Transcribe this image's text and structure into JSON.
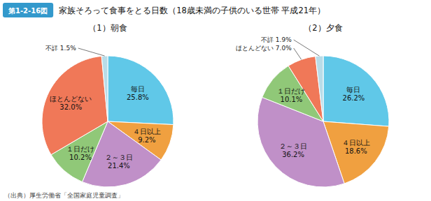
{
  "title": "家族そろって食事をとる日数（18歳未満の子供のいる世帯 平成21年）",
  "annotations": [
    "第1-2-16図",
    "（出典）厚生労働省「全国家庭児童調査」"
  ],
  "chart_data": [
    {
      "type": "pie",
      "title": "（1）朝食",
      "categories": [
        "毎日",
        "４日以上",
        "２～３日",
        "１日だけ",
        "ほとんどない",
        "不詳"
      ],
      "values": [
        25.8,
        9.2,
        21.4,
        10.2,
        32.0,
        1.5
      ],
      "value_labels": [
        "25.8%",
        "9.2%",
        "21.4%",
        "10.2%",
        "32.0%",
        "1.5%"
      ],
      "colors": [
        "#60c8e8",
        "#f0a040",
        "#c090c8",
        "#90c878",
        "#f07858",
        "#b8dce8"
      ],
      "data_labels": true
    },
    {
      "type": "pie",
      "title": "（2）夕食",
      "categories": [
        "毎日",
        "４日以上",
        "２～３日",
        "１日だけ",
        "ほとんどない",
        "不詳"
      ],
      "values": [
        26.2,
        18.6,
        36.2,
        10.1,
        7.0,
        1.9
      ],
      "value_labels": [
        "26.2%",
        "18.6%",
        "36.2%",
        "10.1%",
        "7.0%",
        "1.9%"
      ],
      "colors": [
        "#60c8e8",
        "#f0a040",
        "#c090c8",
        "#90c878",
        "#f07858",
        "#b8dce8"
      ],
      "data_labels": true
    }
  ]
}
